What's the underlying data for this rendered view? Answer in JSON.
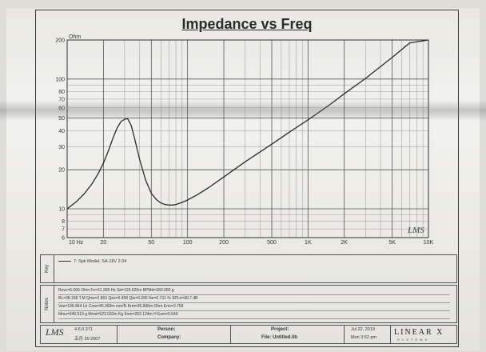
{
  "chart_data": {
    "type": "line",
    "title": "Impedance vs Freq",
    "x_scale": "log",
    "y_scale": "log",
    "xlim": [
      10,
      10000
    ],
    "ylim": [
      6,
      200
    ],
    "y_unit_label": "Ohm",
    "x_ticks": [
      {
        "v": 10,
        "label": "10  Hz"
      },
      {
        "v": 20,
        "label": "20"
      },
      {
        "v": 50,
        "label": "50"
      },
      {
        "v": 100,
        "label": "100"
      },
      {
        "v": 200,
        "label": "200"
      },
      {
        "v": 500,
        "label": "500"
      },
      {
        "v": 1000,
        "label": "1K"
      },
      {
        "v": 2000,
        "label": "2K"
      },
      {
        "v": 5000,
        "label": "5K"
      },
      {
        "v": 10000,
        "label": "10K"
      }
    ],
    "y_ticks": [
      {
        "v": 6,
        "label": "6"
      },
      {
        "v": 7,
        "label": "7"
      },
      {
        "v": 8,
        "label": "8"
      },
      {
        "v": 10,
        "label": "10"
      },
      {
        "v": 20,
        "label": "20"
      },
      {
        "v": 30,
        "label": "30"
      },
      {
        "v": 40,
        "label": "40"
      },
      {
        "v": 50,
        "label": "50"
      },
      {
        "v": 60,
        "label": "60"
      },
      {
        "v": 70,
        "label": "70"
      },
      {
        "v": 80,
        "label": "80"
      },
      {
        "v": 100,
        "label": "100"
      },
      {
        "v": 200,
        "label": "200"
      }
    ],
    "grid": true,
    "series": [
      {
        "name": "7: Spk Model, SA-18V 2.04",
        "color": "#2b2b2b",
        "x": [
          10,
          12,
          14,
          16,
          18,
          20,
          22,
          24,
          26,
          28,
          30,
          31.4,
          32,
          34,
          36,
          40,
          45,
          50,
          55,
          60,
          65,
          70,
          75,
          80,
          90,
          100,
          120,
          150,
          200,
          300,
          500,
          700,
          1000,
          1500,
          2000,
          3000,
          5000,
          7000,
          10000
        ],
        "y": [
          10.0,
          11.4,
          13.2,
          15.5,
          18.5,
          22.5,
          28.0,
          35.0,
          42.0,
          47.0,
          49.0,
          49.5,
          49.0,
          44.0,
          36.0,
          24.0,
          16.5,
          13.2,
          11.8,
          11.1,
          10.8,
          10.7,
          10.7,
          10.8,
          11.2,
          11.7,
          12.8,
          14.6,
          17.6,
          23.0,
          31.5,
          39.0,
          48.5,
          63.0,
          77.0,
          101.0,
          147.0,
          190.0,
          200.0
        ]
      }
    ]
  },
  "legend": {
    "section_label": "Key",
    "entry": "7: Spk Model, SA-18V 2.04"
  },
  "notes": {
    "section_label": "Notes",
    "lines": [
      "Revc=6.066 Ohm  Fs=31.368 Hz  Sd=126.625m  BPMd=360.000 g",
      "BL=38.158 T.M  Qms=2.853  Qes=0.458  Qts=0.395  Ne=0.731 %  SPLo=90.7 dB",
      "Vas=196.964 Ltr  Cms=45.369m mm/N  Krm=35.995m Ohm  Erm=0.758",
      "Mms=549.519 g  Mmd=522.032m Kg  Kxm=262.124m H  Exm=0.549"
    ]
  },
  "footer": {
    "logo": "LMS",
    "version": "4.6.0.371",
    "date_code": "五月 30 2007",
    "person_label": "Person:",
    "company_label": "Company:",
    "project_label": "Project:",
    "file_label": "File: Untitled.lib",
    "date": "Jul 22, 2019",
    "time": "Mon  3:52 pm",
    "brand": "LINEAR X",
    "brand_sub": "SYSTEMS"
  },
  "watermark": "LMS"
}
